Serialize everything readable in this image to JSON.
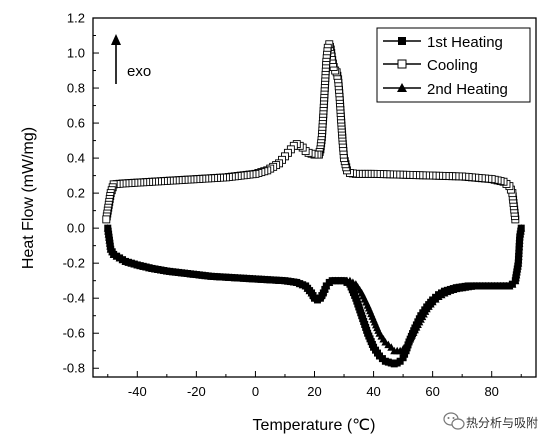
{
  "chart_data": {
    "type": "line",
    "title": "",
    "xlabel": "Temperature (℃)",
    "ylabel": "Heat Flow (mW/mg)",
    "xlim": [
      -55,
      95
    ],
    "ylim": [
      -0.85,
      1.2
    ],
    "xticks": [
      -40,
      -20,
      0,
      20,
      40,
      60,
      80
    ],
    "xtick_labels": [
      "-40",
      "-20",
      "0",
      "20",
      "40",
      "60",
      "80"
    ],
    "yticks": [
      -0.8,
      -0.6,
      -0.4,
      -0.2,
      0.0,
      0.2,
      0.4,
      0.6,
      0.8,
      1.0,
      1.2
    ],
    "ytick_labels": [
      "-0.8",
      "-0.6",
      "-0.4",
      "-0.2",
      "0.0",
      "0.2",
      "0.4",
      "0.6",
      "0.8",
      "1.0",
      "1.2"
    ],
    "grid": false,
    "legend_position": "top-right",
    "series": [
      {
        "name": "1st Heating",
        "marker": "square-filled",
        "color": "#000000",
        "x": [
          -50,
          -49,
          -48,
          -46,
          -44,
          -40,
          -35,
          -30,
          -25,
          -20,
          -15,
          -10,
          -5,
          0,
          5,
          10,
          14,
          17,
          19,
          20,
          21,
          22,
          23,
          24,
          25,
          26,
          27,
          28,
          30,
          32,
          34,
          36,
          38,
          40,
          42,
          44,
          46,
          47,
          48,
          49,
          50,
          51,
          52,
          54,
          56,
          58,
          60,
          62,
          64,
          66,
          68,
          70,
          72,
          74,
          76,
          78,
          80,
          82,
          84,
          86,
          87,
          88,
          89,
          89.5,
          90
        ],
        "y": [
          0.0,
          -0.12,
          -0.15,
          -0.17,
          -0.19,
          -0.21,
          -0.23,
          -0.245,
          -0.255,
          -0.265,
          -0.275,
          -0.28,
          -0.285,
          -0.29,
          -0.295,
          -0.3,
          -0.31,
          -0.33,
          -0.37,
          -0.4,
          -0.41,
          -0.4,
          -0.37,
          -0.33,
          -0.31,
          -0.3,
          -0.3,
          -0.3,
          -0.3,
          -0.32,
          -0.4,
          -0.5,
          -0.6,
          -0.68,
          -0.73,
          -0.76,
          -0.77,
          -0.775,
          -0.77,
          -0.76,
          -0.74,
          -0.7,
          -0.65,
          -0.57,
          -0.5,
          -0.45,
          -0.41,
          -0.38,
          -0.36,
          -0.35,
          -0.34,
          -0.335,
          -0.33,
          -0.33,
          -0.33,
          -0.33,
          -0.33,
          -0.33,
          -0.33,
          -0.33,
          -0.32,
          -0.3,
          -0.2,
          -0.05,
          0.0
        ]
      },
      {
        "name": "Cooling",
        "marker": "square-open",
        "color": "#000000",
        "x": [
          88,
          87,
          86,
          84,
          80,
          70,
          60,
          50,
          40,
          34,
          32,
          31,
          30,
          29.5,
          29,
          28.5,
          28,
          27.5,
          27,
          26.5,
          26,
          25.5,
          25,
          24.5,
          24,
          23.5,
          23,
          22.5,
          22,
          21.5,
          21,
          20,
          19,
          18,
          17,
          16,
          15,
          14,
          13,
          12,
          11,
          10,
          9,
          8,
          6,
          4,
          2,
          0,
          -5,
          -10,
          -15,
          -20,
          -25,
          -30,
          -35,
          -40,
          -45,
          -48,
          -49,
          -50,
          -50.5
        ],
        "y": [
          0.05,
          0.2,
          0.24,
          0.265,
          0.28,
          0.295,
          0.3,
          0.305,
          0.31,
          0.31,
          0.315,
          0.33,
          0.4,
          0.5,
          0.62,
          0.75,
          0.85,
          0.89,
          0.9,
          0.92,
          0.96,
          1.02,
          1.05,
          1.03,
          0.95,
          0.8,
          0.65,
          0.52,
          0.45,
          0.42,
          0.42,
          0.42,
          0.425,
          0.43,
          0.44,
          0.46,
          0.47,
          0.48,
          0.47,
          0.45,
          0.43,
          0.41,
          0.39,
          0.37,
          0.35,
          0.33,
          0.32,
          0.31,
          0.3,
          0.29,
          0.285,
          0.28,
          0.275,
          0.27,
          0.265,
          0.26,
          0.255,
          0.25,
          0.2,
          0.1,
          0.05
        ]
      },
      {
        "name": "2nd Heating",
        "marker": "triangle-filled",
        "color": "#000000",
        "x": [
          -50,
          -49,
          -48,
          -46,
          -44,
          -40,
          -35,
          -30,
          -25,
          -20,
          -15,
          -10,
          -5,
          0,
          5,
          10,
          14,
          17,
          19,
          20,
          21,
          22,
          23,
          24,
          25,
          26,
          27,
          28,
          30,
          32,
          34,
          36,
          38,
          40,
          42,
          44,
          46,
          47,
          48,
          49,
          50,
          51,
          52,
          54,
          56,
          58,
          60,
          62,
          64,
          66,
          68,
          70,
          72,
          74,
          76,
          78,
          80,
          82,
          84,
          86,
          87,
          88,
          89,
          89.5,
          90
        ],
        "y": [
          0.0,
          -0.12,
          -0.15,
          -0.17,
          -0.19,
          -0.21,
          -0.23,
          -0.245,
          -0.255,
          -0.265,
          -0.275,
          -0.28,
          -0.285,
          -0.29,
          -0.295,
          -0.3,
          -0.31,
          -0.33,
          -0.37,
          -0.39,
          -0.4,
          -0.39,
          -0.36,
          -0.33,
          -0.31,
          -0.3,
          -0.3,
          -0.3,
          -0.3,
          -0.3,
          -0.32,
          -0.37,
          -0.44,
          -0.52,
          -0.6,
          -0.65,
          -0.68,
          -0.7,
          -0.7,
          -0.7,
          -0.69,
          -0.67,
          -0.64,
          -0.58,
          -0.52,
          -0.46,
          -0.42,
          -0.39,
          -0.37,
          -0.355,
          -0.345,
          -0.34,
          -0.335,
          -0.33,
          -0.33,
          -0.33,
          -0.33,
          -0.33,
          -0.33,
          -0.33,
          -0.32,
          -0.3,
          -0.2,
          -0.05,
          0.0
        ]
      }
    ],
    "annotations": [
      {
        "text": "exo",
        "arrow": "up",
        "x": -46,
        "y": 0.98
      }
    ]
  },
  "watermark": {
    "text": "热分析与吸附",
    "icon": "wechat-icon"
  }
}
